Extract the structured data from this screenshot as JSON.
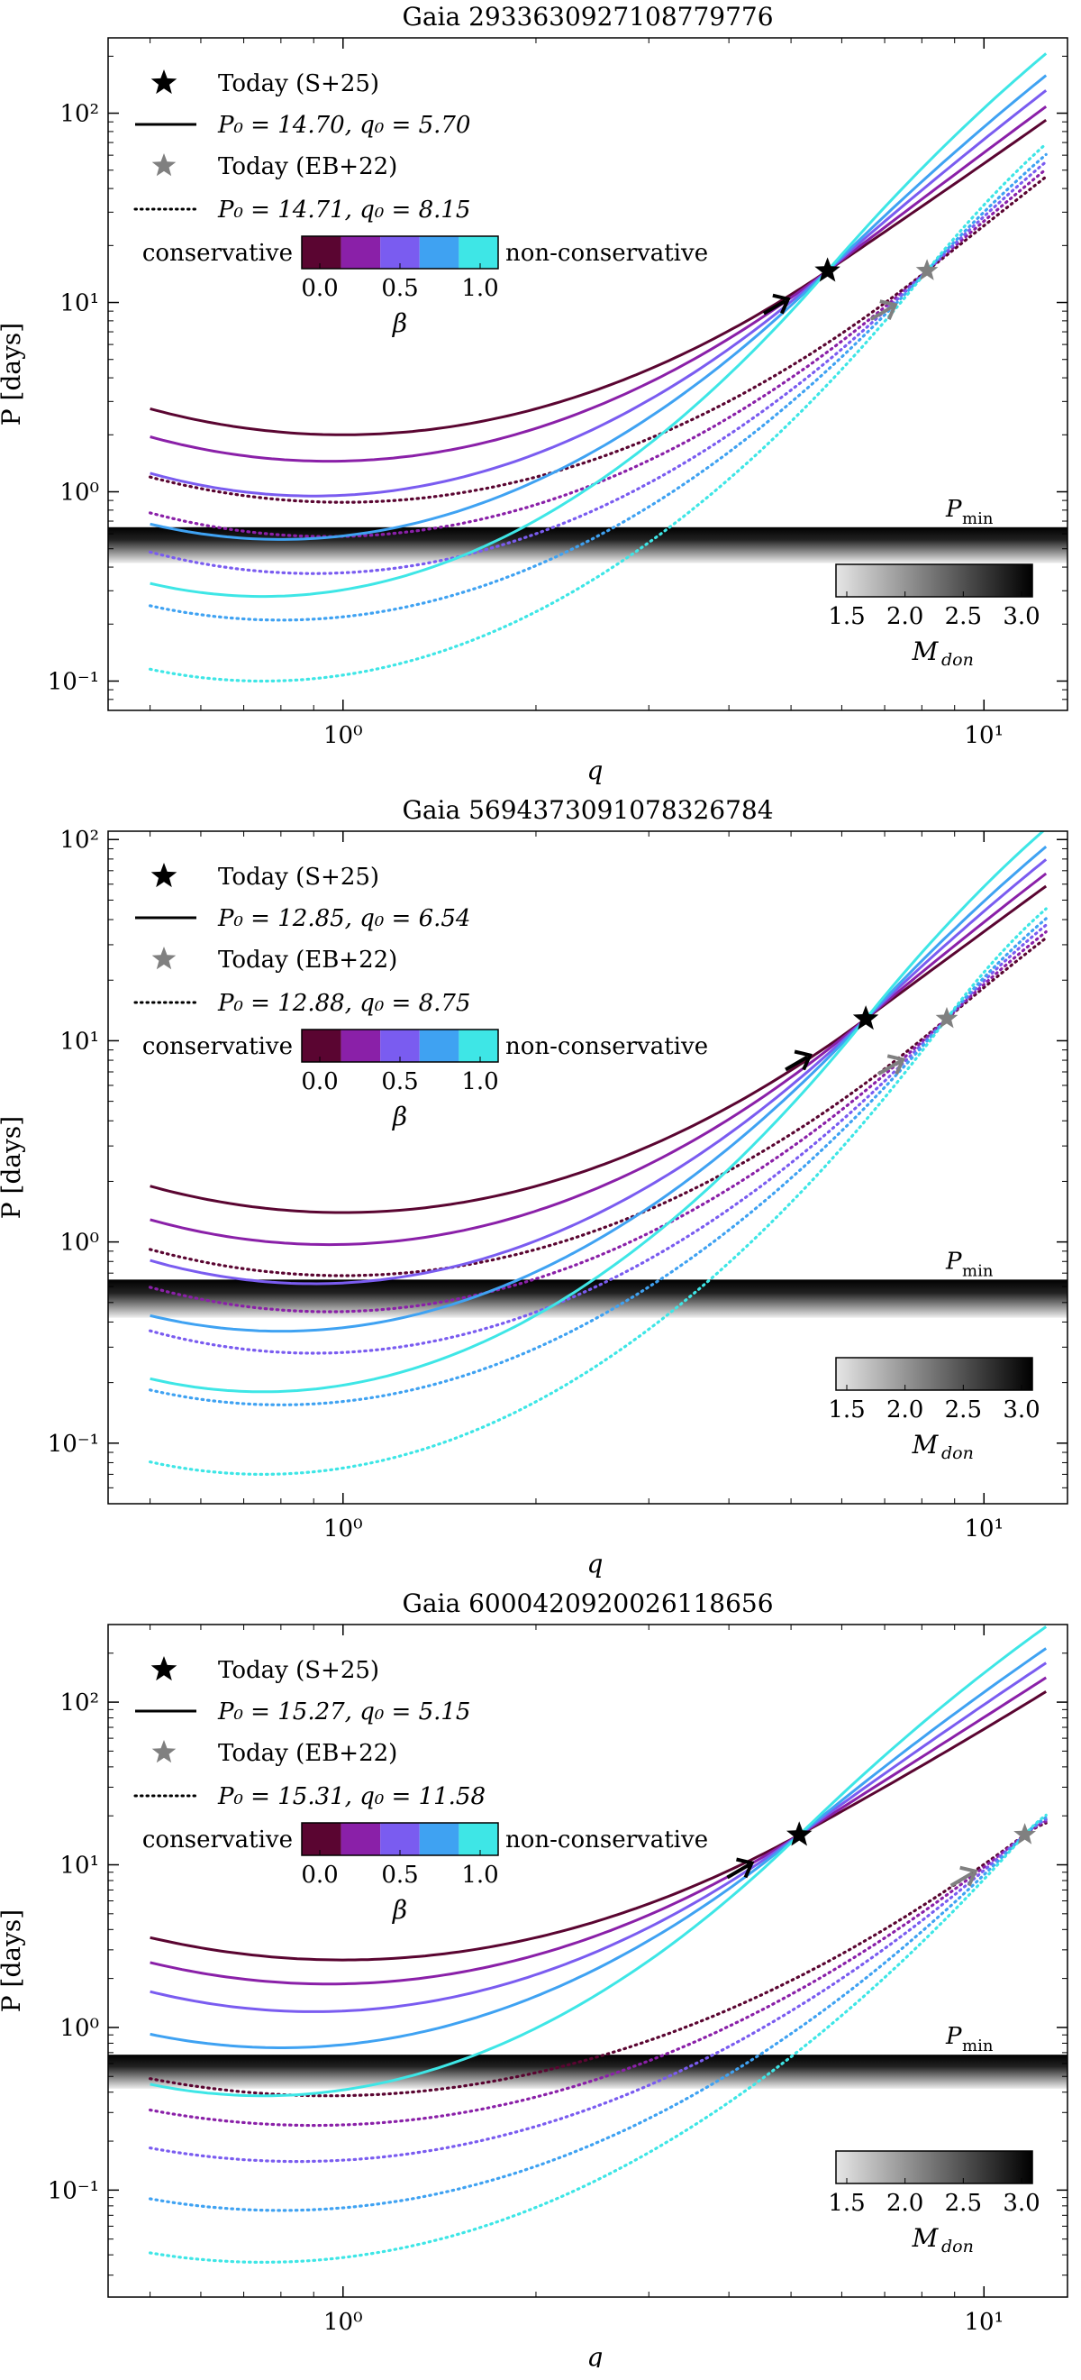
{
  "chart_data": [
    {
      "type": "line",
      "title": "Gaia 2933630927108779776",
      "xlabel": "q",
      "ylabel": "P [days]",
      "xscale": "log",
      "yscale": "log",
      "xlim": [
        0.43,
        13.5
      ],
      "ylim": [
        0.07,
        250
      ],
      "xticks": [
        {
          "v": 1,
          "label": "10⁰"
        },
        {
          "v": 10,
          "label": "10¹"
        }
      ],
      "yticks": [
        {
          "v": 0.1,
          "label": "10⁻¹"
        },
        {
          "v": 1,
          "label": "10⁰"
        },
        {
          "v": 10,
          "label": "10¹"
        },
        {
          "v": 100,
          "label": "10²"
        }
      ],
      "legend": [
        {
          "marker": "star-black",
          "label": "Today (S+25)"
        },
        {
          "line": "solid",
          "label": "P₀ = 14.70, q₀ = 5.70"
        },
        {
          "marker": "star-gray",
          "label": "Today (EB+22)"
        },
        {
          "line": "dotted",
          "label": "P₀ = 14.71, q₀ = 8.15"
        }
      ],
      "beta_colorbar": {
        "left_label": "conservative",
        "right_label": "non-conservative",
        "label": "β",
        "ticks": [
          "0.0",
          "0.5",
          "1.0"
        ]
      },
      "mdon_colorbar": {
        "label": "M_don",
        "ticks": [
          "1.5",
          "2.0",
          "2.5",
          "3.0"
        ]
      },
      "pmin_label": "P_min",
      "pmin_band": [
        0.42,
        0.65
      ],
      "today_s25": {
        "q": 5.7,
        "P": 14.7
      },
      "today_eb22": {
        "q": 8.15,
        "P": 14.71
      },
      "arrow_solid": {
        "q": 4.9,
        "P": 10.2
      },
      "arrow_dotted": {
        "q": 7.2,
        "P": 9.5
      },
      "solid_series": [
        {
          "beta": 0.0,
          "min": [
            1.0,
            2.0
          ],
          "end": [
            12.5,
            95
          ]
        },
        {
          "beta": 0.25,
          "min": [
            0.95,
            1.45
          ],
          "end": [
            12.5,
            105
          ]
        },
        {
          "beta": 0.5,
          "min": [
            0.9,
            0.95
          ],
          "end": [
            12.5,
            115
          ]
        },
        {
          "beta": 0.75,
          "min": [
            0.8,
            0.56
          ],
          "end": [
            12.5,
            125
          ]
        },
        {
          "beta": 1.0,
          "min": [
            0.75,
            0.28
          ],
          "end": [
            12.5,
            135
          ]
        }
      ],
      "dotted_series": [
        {
          "beta": 0.0,
          "min": [
            1.0,
            0.88
          ],
          "end": [
            12.5,
            46
          ]
        },
        {
          "beta": 0.25,
          "min": [
            0.95,
            0.58
          ],
          "end": [
            12.5,
            48
          ]
        },
        {
          "beta": 0.5,
          "min": [
            0.9,
            0.37
          ],
          "end": [
            12.5,
            50
          ]
        },
        {
          "beta": 0.75,
          "min": [
            0.8,
            0.21
          ],
          "end": [
            12.5,
            52
          ]
        },
        {
          "beta": 1.0,
          "min": [
            0.75,
            0.1
          ],
          "end": [
            12.5,
            54
          ]
        }
      ]
    },
    {
      "type": "line",
      "title": "Gaia 5694373091078326784",
      "xlabel": "q",
      "ylabel": "P [days]",
      "xscale": "log",
      "yscale": "log",
      "xlim": [
        0.43,
        13.5
      ],
      "ylim": [
        0.05,
        110
      ],
      "xticks": [
        {
          "v": 1,
          "label": "10⁰"
        },
        {
          "v": 10,
          "label": "10¹"
        }
      ],
      "yticks": [
        {
          "v": 0.1,
          "label": "10⁻¹"
        },
        {
          "v": 1,
          "label": "10⁰"
        },
        {
          "v": 10,
          "label": "10¹"
        },
        {
          "v": 100,
          "label": "10²"
        }
      ],
      "legend": [
        {
          "marker": "star-black",
          "label": "Today (S+25)"
        },
        {
          "line": "solid",
          "label": "P₀ = 12.85, q₀ = 6.54"
        },
        {
          "marker": "star-gray",
          "label": "Today (EB+22)"
        },
        {
          "line": "dotted",
          "label": "P₀ = 12.88, q₀ = 8.75"
        }
      ],
      "beta_colorbar": {
        "left_label": "conservative",
        "right_label": "non-conservative",
        "label": "β",
        "ticks": [
          "0.0",
          "0.5",
          "1.0"
        ]
      },
      "mdon_colorbar": {
        "label": "M_don",
        "ticks": [
          "1.5",
          "2.0",
          "2.5",
          "3.0"
        ]
      },
      "pmin_label": "P_min",
      "pmin_band": [
        0.42,
        0.65
      ],
      "today_s25": {
        "q": 6.54,
        "P": 12.85
      },
      "today_eb22": {
        "q": 8.75,
        "P": 12.88
      },
      "arrow_solid": {
        "q": 5.3,
        "P": 8.3
      },
      "arrow_dotted": {
        "q": 7.4,
        "P": 7.9
      },
      "solid_series": [
        {
          "beta": 0.0,
          "min": [
            1.0,
            1.4
          ],
          "end": [
            12.5,
            58
          ]
        },
        {
          "beta": 0.25,
          "min": [
            0.95,
            0.97
          ],
          "end": [
            12.5,
            63
          ]
        },
        {
          "beta": 0.5,
          "min": [
            0.9,
            0.62
          ],
          "end": [
            12.5,
            68
          ]
        },
        {
          "beta": 0.75,
          "min": [
            0.8,
            0.36
          ],
          "end": [
            12.5,
            73
          ]
        },
        {
          "beta": 1.0,
          "min": [
            0.75,
            0.18
          ],
          "end": [
            12.5,
            78
          ]
        }
      ],
      "dotted_series": [
        {
          "beta": 0.0,
          "min": [
            1.0,
            0.68
          ],
          "end": [
            12.5,
            31
          ]
        },
        {
          "beta": 0.25,
          "min": [
            0.95,
            0.45
          ],
          "end": [
            12.5,
            32
          ]
        },
        {
          "beta": 0.5,
          "min": [
            0.9,
            0.28
          ],
          "end": [
            12.5,
            33
          ]
        },
        {
          "beta": 0.75,
          "min": [
            0.8,
            0.155
          ],
          "end": [
            12.5,
            34
          ]
        },
        {
          "beta": 1.0,
          "min": [
            0.75,
            0.07
          ],
          "end": [
            12.5,
            35
          ]
        }
      ]
    },
    {
      "type": "line",
      "title": "Gaia 6000420920026118656",
      "xlabel": "q",
      "ylabel": "P [days]",
      "xscale": "log",
      "yscale": "log",
      "xlim": [
        0.43,
        13.5
      ],
      "ylim": [
        0.022,
        300
      ],
      "xticks": [
        {
          "v": 1,
          "label": "10⁰"
        },
        {
          "v": 10,
          "label": "10¹"
        }
      ],
      "yticks": [
        {
          "v": 0.1,
          "label": "10⁻¹"
        },
        {
          "v": 1,
          "label": "10⁰"
        },
        {
          "v": 10,
          "label": "10¹"
        },
        {
          "v": 100,
          "label": "10²"
        }
      ],
      "legend": [
        {
          "marker": "star-black",
          "label": "Today (S+25)"
        },
        {
          "line": "solid",
          "label": "P₀ = 15.27, q₀ = 5.15"
        },
        {
          "marker": "star-gray",
          "label": "Today (EB+22)"
        },
        {
          "line": "dotted",
          "label": "P₀ = 15.31, q₀ = 11.58"
        }
      ],
      "beta_colorbar": {
        "left_label": "conservative",
        "right_label": "non-conservative",
        "label": "β",
        "ticks": [
          "0.0",
          "0.5",
          "1.0"
        ]
      },
      "mdon_colorbar": {
        "label": "M_don",
        "ticks": [
          "1.5",
          "2.0",
          "2.5",
          "3.0"
        ]
      },
      "pmin_label": "P_min",
      "pmin_band": [
        0.42,
        0.68
      ],
      "today_s25": {
        "q": 5.15,
        "P": 15.27
      },
      "today_eb22": {
        "q": 11.58,
        "P": 15.31
      },
      "arrow_solid": {
        "q": 4.3,
        "P": 10.0
      },
      "arrow_dotted": {
        "q": 9.6,
        "P": 8.9
      },
      "solid_series": [
        {
          "beta": 0.0,
          "min": [
            1.0,
            2.6
          ],
          "end": [
            12.5,
            130
          ]
        },
        {
          "beta": 0.25,
          "min": [
            0.95,
            1.85
          ],
          "end": [
            12.5,
            143
          ]
        },
        {
          "beta": 0.5,
          "min": [
            0.9,
            1.25
          ],
          "end": [
            12.5,
            156
          ]
        },
        {
          "beta": 0.75,
          "min": [
            0.8,
            0.75
          ],
          "end": [
            12.5,
            170
          ]
        },
        {
          "beta": 1.0,
          "min": [
            0.75,
            0.38
          ],
          "end": [
            12.5,
            185
          ]
        }
      ],
      "dotted_series": [
        {
          "beta": 0.0,
          "min": [
            0.95,
            0.38
          ],
          "end": [
            12.5,
            17
          ]
        },
        {
          "beta": 0.25,
          "min": [
            0.9,
            0.25
          ],
          "end": [
            12.5,
            17.5
          ]
        },
        {
          "beta": 0.5,
          "min": [
            0.85,
            0.15
          ],
          "end": [
            12.5,
            18
          ]
        },
        {
          "beta": 0.75,
          "min": [
            0.8,
            0.075
          ],
          "end": [
            12.5,
            18.5
          ]
        },
        {
          "beta": 1.0,
          "min": [
            0.75,
            0.036
          ],
          "end": [
            12.5,
            19
          ]
        }
      ]
    }
  ],
  "beta_colors": [
    "#5a0531",
    "#8a20a8",
    "#7a5cf0",
    "#3fa2f2",
    "#3ee6e6"
  ]
}
